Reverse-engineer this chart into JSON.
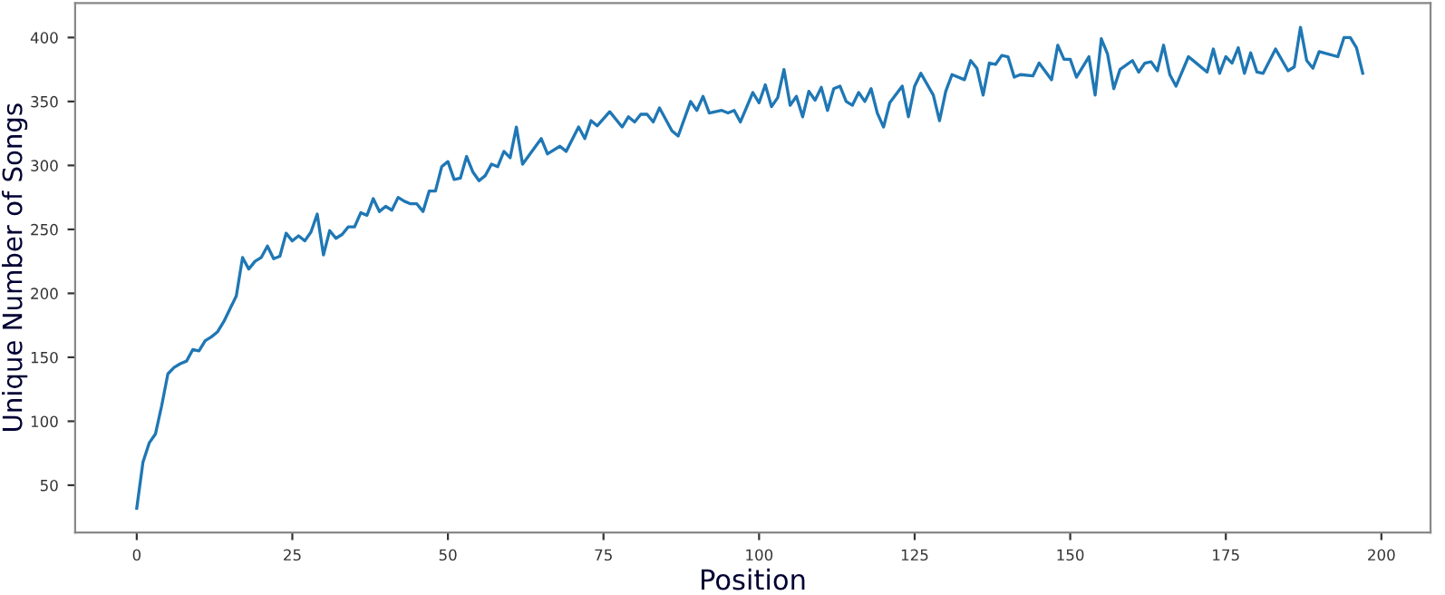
{
  "chart_data": {
    "type": "line",
    "xlabel": "Position",
    "ylabel": "Unique Number of Songs",
    "xlim": [
      -9.9,
      207.9
    ],
    "xticks": [
      0,
      25,
      50,
      75,
      100,
      125,
      150,
      175,
      200
    ],
    "ylim": [
      13,
      427
    ],
    "yticks": [
      50,
      100,
      150,
      200,
      250,
      300,
      350,
      400
    ],
    "grid": false,
    "legend": false,
    "marker": "none",
    "line_style": "solid",
    "series": [
      {
        "color": "#1f77b4",
        "x": [
          0,
          1,
          2,
          3,
          4,
          5,
          6,
          7,
          8,
          9,
          10,
          11,
          12,
          13,
          14,
          15,
          16,
          17,
          18,
          19,
          20,
          21,
          22,
          23,
          24,
          25,
          26,
          27,
          28,
          29,
          30,
          31,
          32,
          33,
          34,
          35,
          36,
          37,
          38,
          39,
          40,
          41,
          42,
          43,
          44,
          45,
          46,
          47,
          48,
          49,
          50,
          51,
          52,
          53,
          54,
          55,
          56,
          57,
          58,
          59,
          60,
          61,
          62,
          65,
          66,
          68,
          69,
          71,
          72,
          73,
          74,
          76,
          78,
          79,
          80,
          81,
          82,
          83,
          84,
          86,
          87,
          89,
          90,
          91,
          92,
          94,
          95,
          96,
          97,
          99,
          100,
          101,
          102,
          103,
          104,
          105,
          106,
          107,
          108,
          109,
          110,
          111,
          112,
          113,
          114,
          115,
          116,
          117,
          118,
          119,
          120,
          121,
          123,
          124,
          125,
          126,
          128,
          129,
          130,
          131,
          133,
          134,
          135,
          136,
          137,
          138,
          139,
          140,
          141,
          142,
          144,
          145,
          147,
          148,
          149,
          150,
          151,
          153,
          154,
          155,
          156,
          157,
          158,
          160,
          161,
          162,
          163,
          164,
          165,
          166,
          167,
          169,
          170,
          172,
          173,
          174,
          175,
          176,
          177,
          178,
          179,
          180,
          181,
          183,
          185,
          186,
          187,
          188,
          189,
          190,
          193,
          194,
          195,
          196,
          197
        ],
        "values": [
          32,
          68,
          83,
          90,
          112,
          137,
          142,
          145,
          147,
          156,
          155,
          163,
          166,
          170,
          178,
          188,
          198,
          228,
          219,
          225,
          228,
          237,
          227,
          229,
          247,
          241,
          245,
          241,
          248,
          262,
          230,
          249,
          243,
          246,
          252,
          252,
          263,
          261,
          274,
          264,
          268,
          265,
          275,
          272,
          270,
          270,
          264,
          280,
          280,
          299,
          303,
          289,
          290,
          307,
          295,
          288,
          292,
          301,
          299,
          311,
          306,
          330,
          301,
          321,
          309,
          315,
          311,
          330,
          321,
          335,
          331,
          342,
          330,
          338,
          334,
          340,
          340,
          334,
          345,
          327,
          323,
          350,
          343,
          354,
          341,
          343,
          341,
          343,
          334,
          357,
          349,
          363,
          346,
          353,
          375,
          347,
          354,
          338,
          358,
          351,
          361,
          343,
          360,
          362,
          350,
          347,
          357,
          350,
          360,
          341,
          330,
          349,
          362,
          338,
          362,
          372,
          355,
          335,
          358,
          371,
          367,
          382,
          376,
          355,
          380,
          379,
          386,
          385,
          369,
          371,
          370,
          380,
          367,
          394,
          383,
          383,
          369,
          385,
          355,
          399,
          387,
          360,
          375,
          382,
          373,
          380,
          381,
          374,
          394,
          371,
          362,
          385,
          381,
          373,
          391,
          372,
          385,
          380,
          392,
          372,
          388,
          373,
          372,
          391,
          374,
          377,
          408,
          382,
          376,
          389,
          385,
          400,
          400,
          392,
          372
        ]
      }
    ]
  }
}
